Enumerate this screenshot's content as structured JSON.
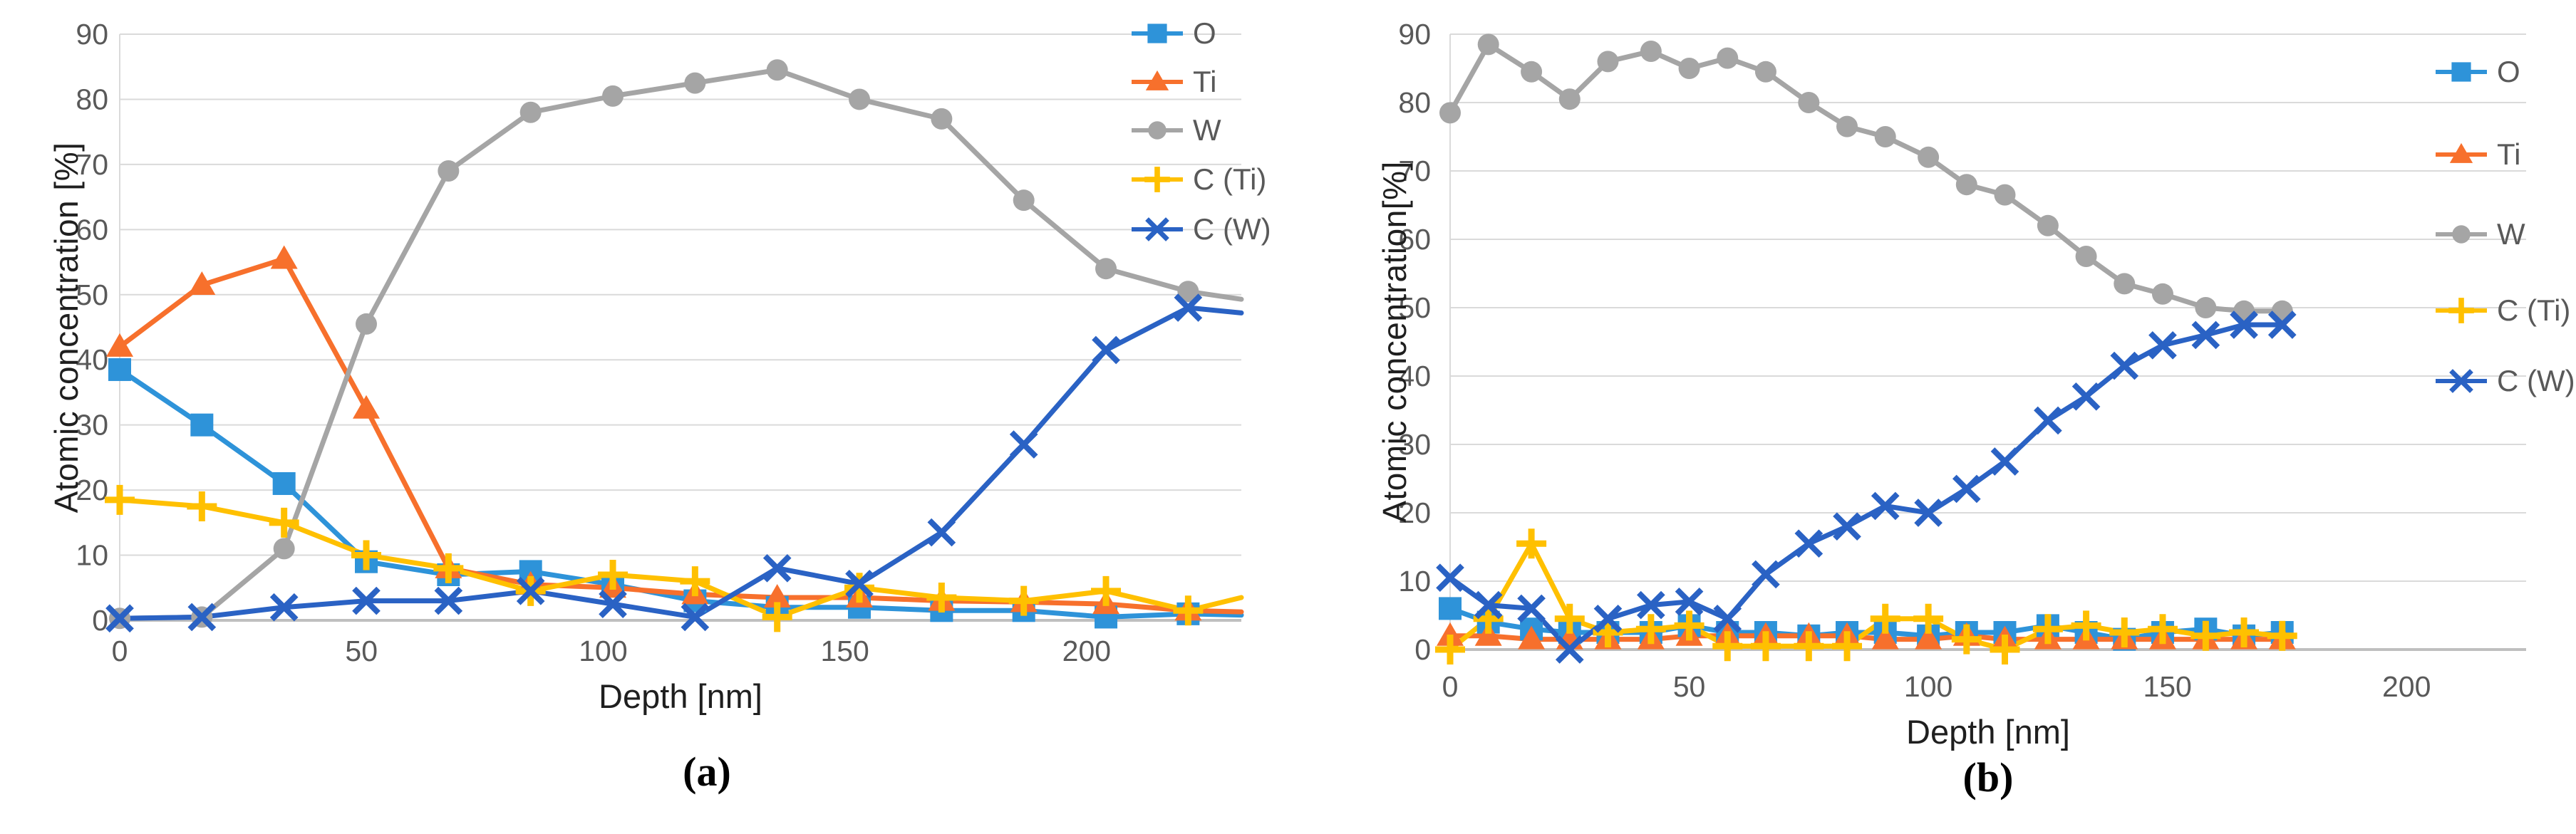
{
  "figure": {
    "background": "#FFFFFF"
  },
  "chart_data": [
    {
      "id": "a",
      "type": "line",
      "caption": "(a)",
      "x_label": "Depth [nm]",
      "y_label": "Atomic concentration [%]",
      "xlim": [
        0,
        232
      ],
      "ylim": [
        0,
        90
      ],
      "x_ticks": [
        0,
        50,
        100,
        150,
        200
      ],
      "y_ticks": [
        0,
        10,
        20,
        30,
        40,
        50,
        60,
        70,
        80,
        90
      ],
      "grid": "horizontal",
      "legend_position": "right",
      "last_point_clipped": true,
      "grid_color": "#DADADA",
      "zero_line_color": "#BFBFBF",
      "x": [
        0,
        17,
        34,
        51,
        68,
        85,
        102,
        119,
        136,
        153,
        170,
        187,
        204,
        221,
        232
      ],
      "series": [
        {
          "name": "O",
          "color": "#2E93D9",
          "marker": "square",
          "values": [
            38.5,
            30,
            21,
            9,
            7,
            7.5,
            5.5,
            3,
            2,
            2,
            1.5,
            1.5,
            0.5,
            1,
            0.8
          ]
        },
        {
          "name": "Ti",
          "color": "#F7702C",
          "marker": "triangle",
          "values": [
            42,
            51.5,
            55.5,
            32.5,
            8,
            5.5,
            5,
            4,
            3.5,
            3.5,
            3,
            2.8,
            2.5,
            1.5,
            1.3
          ]
        },
        {
          "name": "W",
          "color": "#A5A5A5",
          "marker": "circle",
          "values": [
            0.3,
            0.5,
            11,
            45.5,
            69,
            78,
            80.5,
            82.5,
            84.5,
            80,
            77,
            64.5,
            54,
            50.5,
            49.3
          ]
        },
        {
          "name": "C (Ti)",
          "color": "#FFC000",
          "marker": "plus",
          "values": [
            18.5,
            17.5,
            15,
            10,
            8,
            4.5,
            7,
            6,
            0.5,
            5,
            3.5,
            3,
            4.5,
            1.5,
            3.5
          ]
        },
        {
          "name": "C (W)",
          "color": "#2A62C4",
          "marker": "x",
          "values": [
            0.3,
            0.5,
            2,
            3,
            3,
            4.5,
            2.5,
            0.5,
            8,
            5.6,
            13.5,
            27,
            41.5,
            48,
            47.2
          ]
        }
      ]
    },
    {
      "id": "b",
      "type": "line",
      "caption": "(b)",
      "x_label": "Depth [nm]",
      "y_label": "Atomic concentration[%]",
      "xlim": [
        0,
        225
      ],
      "ylim": [
        0,
        90
      ],
      "x_ticks": [
        0,
        50,
        100,
        150,
        200
      ],
      "y_ticks": [
        0,
        10,
        20,
        30,
        40,
        50,
        60,
        70,
        80,
        90
      ],
      "grid": "horizontal",
      "legend_position": "right",
      "last_point_clipped": false,
      "grid_color": "#DADADA",
      "zero_line_color": "#BFBFBF",
      "x": [
        0,
        8,
        17,
        25,
        33,
        42,
        50,
        58,
        66,
        75,
        83,
        91,
        100,
        108,
        116,
        125,
        133,
        141,
        149,
        158,
        166,
        174
      ],
      "series": [
        {
          "name": "O",
          "color": "#2E93D9",
          "marker": "square",
          "values": [
            6,
            4,
            3,
            2.5,
            2.5,
            2.5,
            3.5,
            2.5,
            2.5,
            2,
            2.5,
            2.5,
            2,
            2.5,
            2.5,
            3.5,
            2.5,
            1.5,
            2.5,
            3,
            2,
            2.5
          ]
        },
        {
          "name": "Ti",
          "color": "#F7702C",
          "marker": "triangle",
          "values": [
            2,
            2,
            1.5,
            1.5,
            1.5,
            1.5,
            2,
            2,
            2,
            2,
            2,
            1.5,
            1.5,
            2,
            1.5,
            1.5,
            1.5,
            1.5,
            1.5,
            1.5,
            1.5,
            1.5
          ]
        },
        {
          "name": "W",
          "color": "#A5A5A5",
          "marker": "circle",
          "values": [
            78.5,
            88.5,
            84.5,
            80.5,
            86,
            87.5,
            85,
            86.5,
            84.5,
            80,
            76.5,
            75,
            72,
            68,
            66.5,
            62,
            57.5,
            53.5,
            52,
            50,
            49.5,
            49.5
          ]
        },
        {
          "name": "C (Ti)",
          "color": "#FFC000",
          "marker": "plus",
          "values": [
            0,
            4.5,
            15.5,
            4.5,
            2.5,
            3,
            3.5,
            0.5,
            0.5,
            0.5,
            0.5,
            4.5,
            4.5,
            1.5,
            0,
            3,
            3.5,
            2.5,
            3,
            2,
            2.5,
            2
          ]
        },
        {
          "name": "C (W)",
          "color": "#2A62C4",
          "marker": "x",
          "values": [
            10.5,
            6.5,
            6,
            0,
            4.5,
            6.5,
            7,
            4.5,
            11,
            15.5,
            18,
            21,
            20,
            23.5,
            27.5,
            33.5,
            37,
            41.5,
            44.5,
            46,
            47.5,
            47.5
          ]
        }
      ]
    }
  ]
}
